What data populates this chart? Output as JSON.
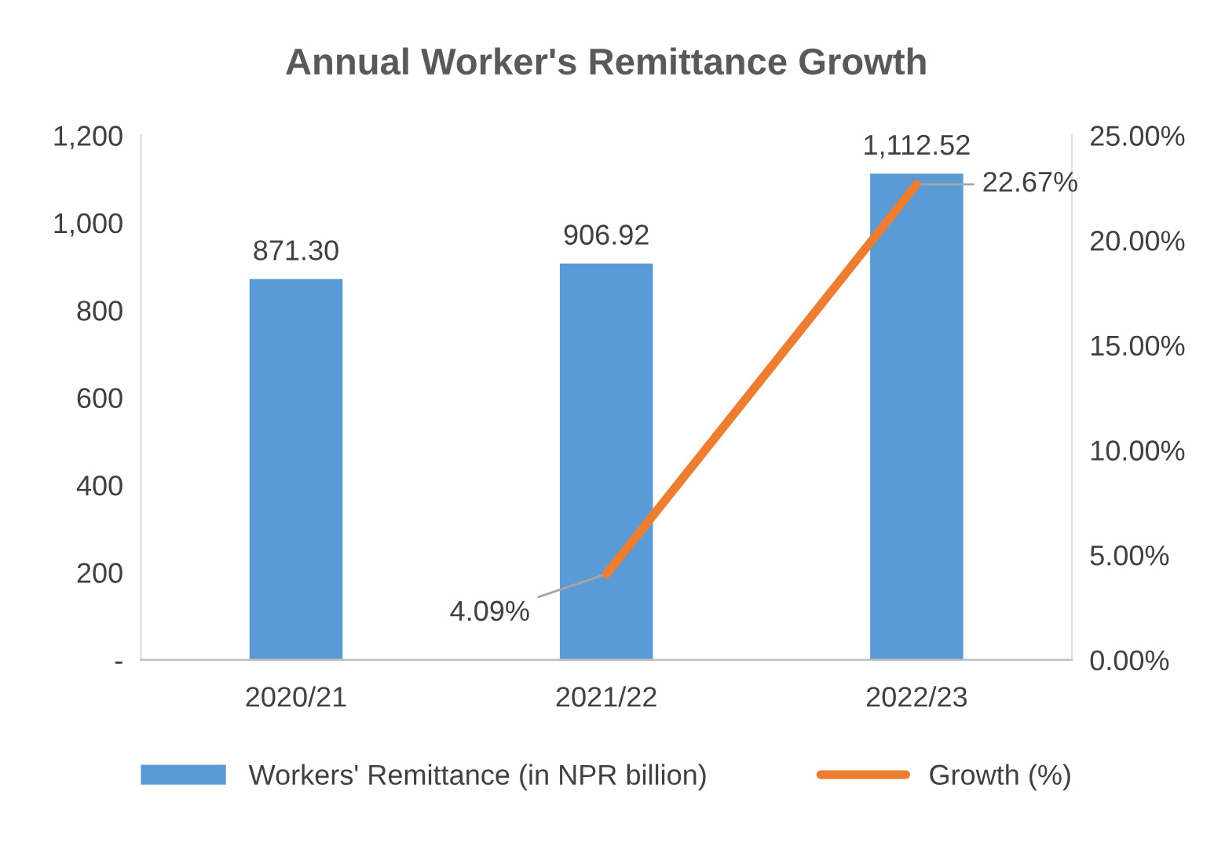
{
  "chart_data": {
    "type": "bar",
    "title": "Annual Worker's Remittance Growth",
    "categories": [
      "2020/21",
      "2021/22",
      "2022/23"
    ],
    "series": [
      {
        "name": "Workers' Remittance (in NPR billion)",
        "color": "#5b9bd5",
        "values": [
          871.3,
          906.92,
          1112.52
        ],
        "value_labels": [
          "871.30",
          "906.92",
          "1,112.52"
        ]
      },
      {
        "name": "Growth (%)",
        "type": "line",
        "axis": "y2",
        "color": "#ed7d31",
        "values": [
          null,
          4.09,
          22.67
        ],
        "value_labels": [
          null,
          "4.09%",
          "22.67%"
        ]
      }
    ],
    "ylim": [
      0,
      1200
    ],
    "yticks": [
      {
        "value": 0,
        "label": "-"
      },
      {
        "value": 200,
        "label": "200"
      },
      {
        "value": 400,
        "label": "400"
      },
      {
        "value": 600,
        "label": "600"
      },
      {
        "value": 800,
        "label": "800"
      },
      {
        "value": 1000,
        "label": "1,000"
      },
      {
        "value": 1200,
        "label": "1,200"
      }
    ],
    "y2lim": [
      0,
      25
    ],
    "y2ticks": [
      {
        "value": 0,
        "label": "0.00%"
      },
      {
        "value": 5,
        "label": "5.00%"
      },
      {
        "value": 10,
        "label": "10.00%"
      },
      {
        "value": 15,
        "label": "15.00%"
      },
      {
        "value": 20,
        "label": "20.00%"
      },
      {
        "value": 25,
        "label": "25.00%"
      }
    ],
    "grid": false,
    "legend": "bottom",
    "marker": "none",
    "line_style": "solid"
  }
}
